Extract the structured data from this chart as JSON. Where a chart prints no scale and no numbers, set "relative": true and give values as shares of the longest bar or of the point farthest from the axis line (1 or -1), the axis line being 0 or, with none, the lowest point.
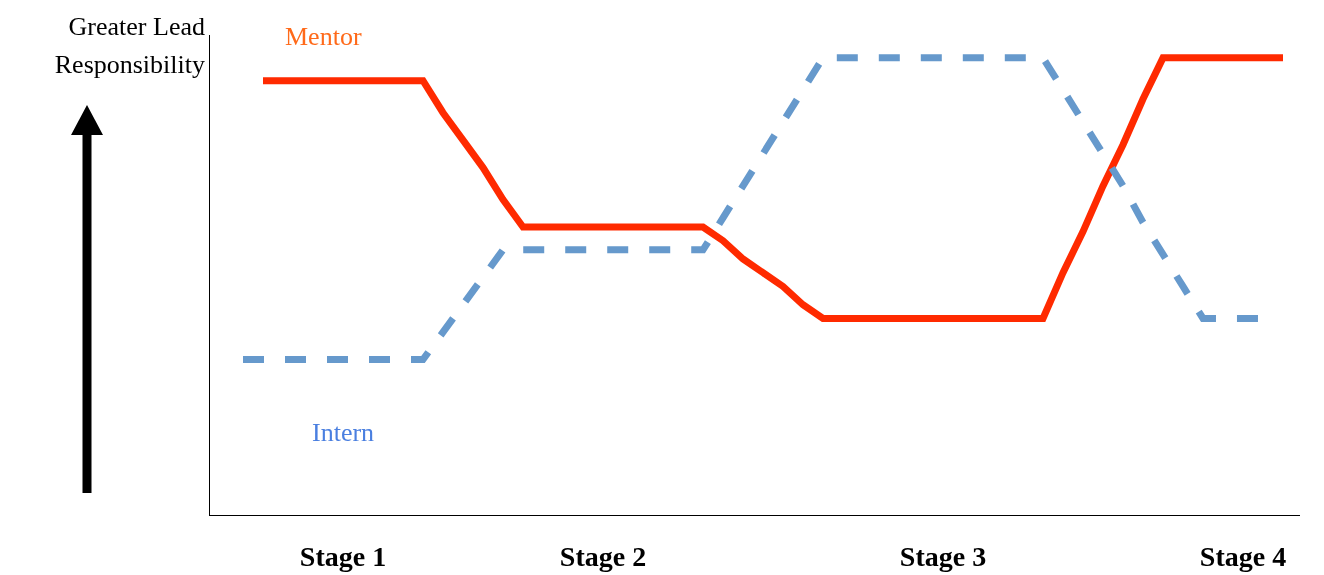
{
  "chart_data": {
    "type": "line",
    "relative": true,
    "ylabel": "Greater Lead Responsibility",
    "categories": [
      null,
      null,
      null,
      null,
      null,
      "Stage 1",
      null,
      null,
      null,
      null,
      null,
      null,
      null,
      null,
      null,
      null,
      null,
      null,
      "Stage 2",
      null,
      null,
      null,
      null,
      null,
      null,
      null,
      null,
      null,
      null,
      null,
      null,
      null,
      null,
      null,
      null,
      "Stage 3",
      null,
      null,
      null,
      null,
      null,
      null,
      null,
      null,
      null,
      null,
      null,
      null,
      null,
      null,
      "Stage 4",
      null,
      null
    ],
    "series": [
      {
        "name": "Mentor",
        "color": "#ff2a00",
        "line_style": "solid",
        "values": [
          null,
          0.95,
          0.95,
          0.95,
          0.95,
          0.95,
          0.95,
          0.95,
          0.95,
          0.95,
          0.88,
          0.82,
          0.76,
          0.69,
          0.63,
          0.63,
          0.63,
          0.63,
          0.63,
          0.63,
          0.63,
          0.63,
          0.63,
          0.63,
          0.6,
          0.56,
          0.53,
          0.5,
          0.46,
          0.43,
          0.43,
          0.43,
          0.43,
          0.43,
          0.43,
          0.43,
          0.43,
          0.43,
          0.43,
          0.43,
          0.43,
          0.53,
          0.62,
          0.72,
          0.81,
          0.91,
          1,
          1,
          1,
          1,
          1,
          1,
          1
        ]
      },
      {
        "name": "Intern",
        "color": "#6699cc",
        "line_style": "dashed",
        "values": [
          0.34,
          0.34,
          0.34,
          0.34,
          0.34,
          0.34,
          0.34,
          0.34,
          0.34,
          0.34,
          0.4,
          0.46,
          0.52,
          0.58,
          0.58,
          0.58,
          0.58,
          0.58,
          0.58,
          0.58,
          0.58,
          0.58,
          0.58,
          0.58,
          0.65,
          0.72,
          0.79,
          0.86,
          0.93,
          1,
          1,
          1,
          1,
          1,
          1,
          1,
          1,
          1,
          1,
          1,
          1,
          0.93,
          0.86,
          0.79,
          0.72,
          0.64,
          0.57,
          0.5,
          0.43,
          0.43,
          0.43,
          0.43,
          null
        ]
      }
    ],
    "grid": false,
    "legend": false,
    "marker": "none"
  }
}
